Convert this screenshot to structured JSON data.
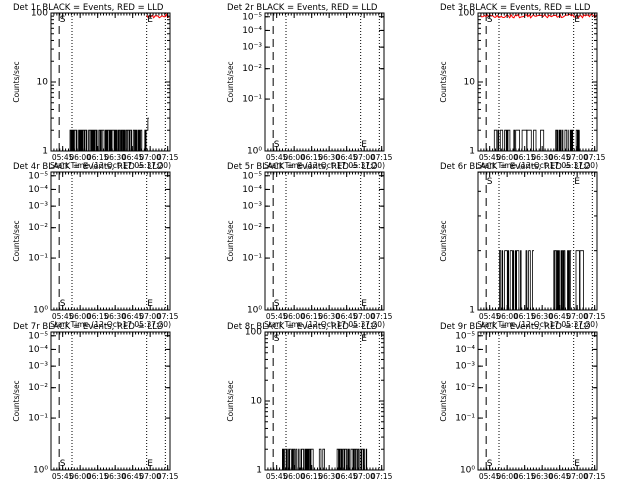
{
  "chart_data": [
    {
      "type": "line",
      "title": "Det 1r BLACK = Events, RED = LLD",
      "xlabel": "Start Time (12-Oct-17 05:37:20)",
      "ylabel": "Counts/sec",
      "y_scale": "log",
      "yticks": [
        {
          "v": 1,
          "l": "1"
        },
        {
          "v": 10,
          "l": "10"
        },
        {
          "v": 100,
          "l": "100"
        }
      ],
      "ylim_log": [
        0,
        2
      ],
      "xlim_min": [
        -2,
        100
      ],
      "xticks": [
        {
          "m": 8,
          "l": "05:45"
        },
        {
          "m": 23,
          "l": "06:00"
        },
        {
          "m": 38,
          "l": "06:15"
        },
        {
          "m": 53,
          "l": "06:30"
        },
        {
          "m": 68,
          "l": "06:45"
        },
        {
          "m": 83,
          "l": "07:00"
        },
        {
          "m": 98,
          "l": "07:15"
        }
      ],
      "dashed_marker_min": 5,
      "dotted_markers_min": [
        16,
        80,
        96
      ],
      "s_label": {
        "text": "S",
        "m": 5.5,
        "y_log": 1.93
      },
      "e_label": {
        "text": "E",
        "m": 80.5,
        "y_log": 1.93
      },
      "events": [
        {
          "from": 14,
          "to": 80,
          "base": 1,
          "high": 2,
          "density": 1.6,
          "seed": 11
        },
        {
          "from": 80,
          "to": 82,
          "base": 2,
          "high": 3,
          "density": 1,
          "seed": 5
        }
      ],
      "lld": {
        "from": 80,
        "to": 100,
        "seed": 3
      }
    },
    {
      "type": "line",
      "title": "Det 2r BLACK = Events, RED = LLD",
      "xlabel": "Start Time (12-Oct-17 05:37:20)",
      "ylabel": "Counts/sec",
      "y_scale": "log",
      "yticks": [
        {
          "v": 1,
          "l": "10⁰"
        },
        {
          "v": 2,
          "l": "10⁻¹"
        },
        {
          "v": 3,
          "l": "10⁻²"
        },
        {
          "v": 4,
          "l": "10⁻³"
        },
        {
          "v": 5,
          "l": "10⁻⁴"
        },
        {
          "v": 6,
          "l": "10⁻⁵"
        }
      ],
      "ylim_log": [
        0,
        0.8
      ],
      "xlim_min": [
        -2,
        100
      ],
      "xticks": [
        {
          "m": 8,
          "l": "05:45"
        },
        {
          "m": 23,
          "l": "06:00"
        },
        {
          "m": 38,
          "l": "06:15"
        },
        {
          "m": 53,
          "l": "06:30"
        },
        {
          "m": 68,
          "l": "06:45"
        },
        {
          "m": 83,
          "l": "07:00"
        },
        {
          "m": 98,
          "l": "07:15"
        }
      ],
      "dashed_marker_min": 5,
      "dotted_markers_min": [
        16,
        80,
        96
      ],
      "s_label": {
        "text": "S",
        "m": 5.5,
        "y_log": 0.045
      },
      "e_label": {
        "text": "E",
        "m": 80.5,
        "y_log": 0.045
      },
      "events": [],
      "lld": null
    },
    {
      "type": "line",
      "title": "Det 3r BLACK = Events, RED = LLD",
      "xlabel": "Start Time (12-Oct-17 05:37:20)",
      "ylabel": "Counts/sec",
      "y_scale": "log",
      "yticks": [
        {
          "v": 1,
          "l": "1"
        },
        {
          "v": 10,
          "l": "10"
        },
        {
          "v": 100,
          "l": "100"
        }
      ],
      "ylim_log": [
        0,
        2
      ],
      "xlim_min": [
        -2,
        100
      ],
      "xticks": [
        {
          "m": 8,
          "l": "05:45"
        },
        {
          "m": 23,
          "l": "06:00"
        },
        {
          "m": 38,
          "l": "06:15"
        },
        {
          "m": 53,
          "l": "06:30"
        },
        {
          "m": 68,
          "l": "06:45"
        },
        {
          "m": 83,
          "l": "07:00"
        },
        {
          "m": 98,
          "l": "07:15"
        }
      ],
      "dashed_marker_min": 5,
      "dotted_markers_min": [
        16,
        80,
        96
      ],
      "s_label": {
        "text": "S",
        "m": 5.5,
        "y_log": 1.93
      },
      "e_label": {
        "text": "E",
        "m": 80.5,
        "y_log": 1.93
      },
      "events": [
        {
          "from": 12,
          "to": 40,
          "base": 1,
          "high": 2,
          "density": 0.7,
          "seed": 21
        },
        {
          "from": 40,
          "to": 55,
          "base": 1,
          "high": 2,
          "density": 0.3,
          "seed": 22
        },
        {
          "from": 63,
          "to": 80,
          "base": 1,
          "high": 2,
          "density": 1.4,
          "seed": 23
        },
        {
          "from": 80,
          "to": 85,
          "base": 1,
          "high": 2,
          "density": 0.8,
          "seed": 24
        }
      ],
      "lld": {
        "from": 0,
        "to": 100,
        "seed": 9
      }
    },
    {
      "type": "line",
      "title": "Det 4r BLACK = Events, RED = LLD",
      "xlabel": "Start Time (12-Oct-17 05:37:20)",
      "ylabel": "Counts/sec",
      "y_scale": "log",
      "yticks": [
        {
          "v": 1,
          "l": "10⁰"
        },
        {
          "v": 2,
          "l": "10⁻¹"
        },
        {
          "v": 3,
          "l": "10⁻²"
        },
        {
          "v": 4,
          "l": "10⁻³"
        },
        {
          "v": 5,
          "l": "10⁻⁴"
        },
        {
          "v": 6,
          "l": "10⁻⁵"
        }
      ],
      "ylim_log": [
        0,
        0.8
      ],
      "xlim_min": [
        -2,
        100
      ],
      "xticks": [
        {
          "m": 8,
          "l": "05:45"
        },
        {
          "m": 23,
          "l": "06:00"
        },
        {
          "m": 38,
          "l": "06:15"
        },
        {
          "m": 53,
          "l": "06:30"
        },
        {
          "m": 68,
          "l": "06:45"
        },
        {
          "m": 83,
          "l": "07:00"
        },
        {
          "m": 98,
          "l": "07:15"
        }
      ],
      "dashed_marker_min": 5,
      "dotted_markers_min": [
        16,
        80,
        96
      ],
      "s_label": {
        "text": "S",
        "m": 5.5,
        "y_log": 0.045
      },
      "e_label": {
        "text": "E",
        "m": 80.5,
        "y_log": 0.045
      },
      "events": [],
      "lld": null
    },
    {
      "type": "line",
      "title": "Det 5r BLACK = Events, RED = LLD",
      "xlabel": "Start Time (12-Oct-17 05:37:20)",
      "ylabel": "Counts/sec",
      "y_scale": "log",
      "yticks": [
        {
          "v": 1,
          "l": "10⁰"
        },
        {
          "v": 2,
          "l": "10⁻¹"
        },
        {
          "v": 3,
          "l": "10⁻²"
        },
        {
          "v": 4,
          "l": "10⁻³"
        },
        {
          "v": 5,
          "l": "10⁻⁴"
        },
        {
          "v": 6,
          "l": "10⁻⁵"
        }
      ],
      "ylim_log": [
        0,
        0.8
      ],
      "xlim_min": [
        -2,
        100
      ],
      "xticks": [
        {
          "m": 8,
          "l": "05:45"
        },
        {
          "m": 23,
          "l": "06:00"
        },
        {
          "m": 38,
          "l": "06:15"
        },
        {
          "m": 53,
          "l": "06:30"
        },
        {
          "m": 68,
          "l": "06:45"
        },
        {
          "m": 83,
          "l": "07:00"
        },
        {
          "m": 98,
          "l": "07:15"
        }
      ],
      "dashed_marker_min": 5,
      "dotted_markers_min": [
        16,
        80,
        96
      ],
      "s_label": {
        "text": "S",
        "m": 5.5,
        "y_log": 0.045
      },
      "e_label": {
        "text": "E",
        "m": 80.5,
        "y_log": 0.045
      },
      "events": [],
      "lld": null
    },
    {
      "type": "line",
      "title": "Det 6r BLACK = Events, RED = LLD",
      "xlabel": "Start Time (12-Oct-17 05:37:20)",
      "ylabel": "Counts/sec",
      "y_scale": "log",
      "yticks": [
        {
          "v": 1,
          "l": "1"
        }
      ],
      "ylim_log": [
        0,
        0.7
      ],
      "xlim_min": [
        -2,
        100
      ],
      "xticks": [
        {
          "m": 8,
          "l": "05:45"
        },
        {
          "m": 23,
          "l": "06:00"
        },
        {
          "m": 38,
          "l": "06:15"
        },
        {
          "m": 53,
          "l": "06:30"
        },
        {
          "m": 68,
          "l": "06:45"
        },
        {
          "m": 83,
          "l": "07:00"
        },
        {
          "m": 98,
          "l": "07:15"
        }
      ],
      "dashed_marker_min": 5,
      "dotted_markers_min": [
        16,
        80,
        96
      ],
      "s_label": {
        "text": "S",
        "m": 5.5,
        "y_log": 0.66
      },
      "e_label": {
        "text": "E",
        "m": 80.5,
        "y_log": 0.66
      },
      "events": [
        {
          "from": 16,
          "to": 30,
          "base": 1,
          "high": 2,
          "density": 0.9,
          "seed": 31
        },
        {
          "from": 30,
          "to": 46,
          "base": 1,
          "high": 2,
          "density": 0.5,
          "seed": 32
        },
        {
          "from": 63,
          "to": 78,
          "base": 1,
          "high": 2,
          "density": 0.9,
          "seed": 33
        },
        {
          "from": 82,
          "to": 90,
          "base": 1,
          "high": 2,
          "density": 0.7,
          "seed": 34
        }
      ],
      "lld": null
    },
    {
      "type": "line",
      "title": "Det 7r BLACK = Events, RED = LLD",
      "xlabel": "Start Time (12-Oct-17 05:37:20)",
      "ylabel": "Counts/sec",
      "y_scale": "log",
      "yticks": [
        {
          "v": 1,
          "l": "10⁰"
        },
        {
          "v": 2,
          "l": "10⁻¹"
        },
        {
          "v": 3,
          "l": "10⁻²"
        },
        {
          "v": 4,
          "l": "10⁻³"
        },
        {
          "v": 5,
          "l": "10⁻⁴"
        },
        {
          "v": 6,
          "l": "10⁻⁵"
        }
      ],
      "ylim_log": [
        0,
        0.8
      ],
      "xlim_min": [
        -2,
        100
      ],
      "xticks": [
        {
          "m": 8,
          "l": "05:45"
        },
        {
          "m": 23,
          "l": "06:00"
        },
        {
          "m": 38,
          "l": "06:15"
        },
        {
          "m": 53,
          "l": "06:30"
        },
        {
          "m": 68,
          "l": "06:45"
        },
        {
          "m": 83,
          "l": "07:00"
        },
        {
          "m": 98,
          "l": "07:15"
        }
      ],
      "dashed_marker_min": 5,
      "dotted_markers_min": [
        16,
        80,
        96
      ],
      "s_label": {
        "text": "S",
        "m": 5.5,
        "y_log": 0.045
      },
      "e_label": {
        "text": "E",
        "m": 80.5,
        "y_log": 0.045
      },
      "events": [],
      "lld": null
    },
    {
      "type": "line",
      "title": "Det 8r BLACK = Events, RED = LLD",
      "xlabel": "Start Time (12-Oct-17 05:37:20)",
      "ylabel": "Counts/sec",
      "y_scale": "log",
      "yticks": [
        {
          "v": 1,
          "l": "1"
        },
        {
          "v": 10,
          "l": "10"
        },
        {
          "v": 100,
          "l": "100"
        }
      ],
      "ylim_log": [
        0,
        2
      ],
      "xlim_min": [
        -2,
        100
      ],
      "xticks": [
        {
          "m": 8,
          "l": "05:45"
        },
        {
          "m": 23,
          "l": "06:00"
        },
        {
          "m": 38,
          "l": "06:15"
        },
        {
          "m": 53,
          "l": "06:30"
        },
        {
          "m": 68,
          "l": "06:45"
        },
        {
          "m": 83,
          "l": "07:00"
        },
        {
          "m": 98,
          "l": "07:15"
        }
      ],
      "dashed_marker_min": 5,
      "dotted_markers_min": [
        16,
        80,
        96
      ],
      "s_label": {
        "text": "S",
        "m": 5.5,
        "y_log": 1.93
      },
      "e_label": {
        "text": "E",
        "m": 80.5,
        "y_log": 1.93
      },
      "events": [
        {
          "from": 12,
          "to": 40,
          "base": 1,
          "high": 2,
          "density": 1.3,
          "seed": 41
        },
        {
          "from": 40,
          "to": 50,
          "base": 1,
          "high": 2,
          "density": 0.4,
          "seed": 42
        },
        {
          "from": 58,
          "to": 86,
          "base": 1,
          "high": 2,
          "density": 1.3,
          "seed": 43
        }
      ],
      "lld": null
    },
    {
      "type": "line",
      "title": "Det 9r BLACK = Events, RED = LLD",
      "xlabel": "Start Time (12-Oct-17 05:37:20)",
      "ylabel": "Counts/sec",
      "y_scale": "log",
      "yticks": [
        {
          "v": 1,
          "l": "10⁰"
        },
        {
          "v": 2,
          "l": "10⁻¹"
        },
        {
          "v": 3,
          "l": "10⁻²"
        },
        {
          "v": 4,
          "l": "10⁻³"
        },
        {
          "v": 5,
          "l": "10⁻⁴"
        },
        {
          "v": 6,
          "l": "10⁻⁵"
        }
      ],
      "ylim_log": [
        0,
        0.8
      ],
      "xlim_min": [
        -2,
        100
      ],
      "xticks": [
        {
          "m": 8,
          "l": "05:45"
        },
        {
          "m": 23,
          "l": "06:00"
        },
        {
          "m": 38,
          "l": "06:15"
        },
        {
          "m": 53,
          "l": "06:30"
        },
        {
          "m": 68,
          "l": "06:45"
        },
        {
          "m": 83,
          "l": "07:00"
        },
        {
          "m": 98,
          "l": "07:15"
        }
      ],
      "dashed_marker_min": 5,
      "dotted_markers_min": [
        16,
        80,
        96
      ],
      "s_label": {
        "text": "S",
        "m": 5.5,
        "y_log": 0.045
      },
      "e_label": {
        "text": "E",
        "m": 80.5,
        "y_log": 0.045
      },
      "events": [],
      "lld": null
    }
  ],
  "colors": {
    "events": "#000000",
    "lld": "#ff0000",
    "axes": "#000000",
    "background": "#ffffff"
  }
}
